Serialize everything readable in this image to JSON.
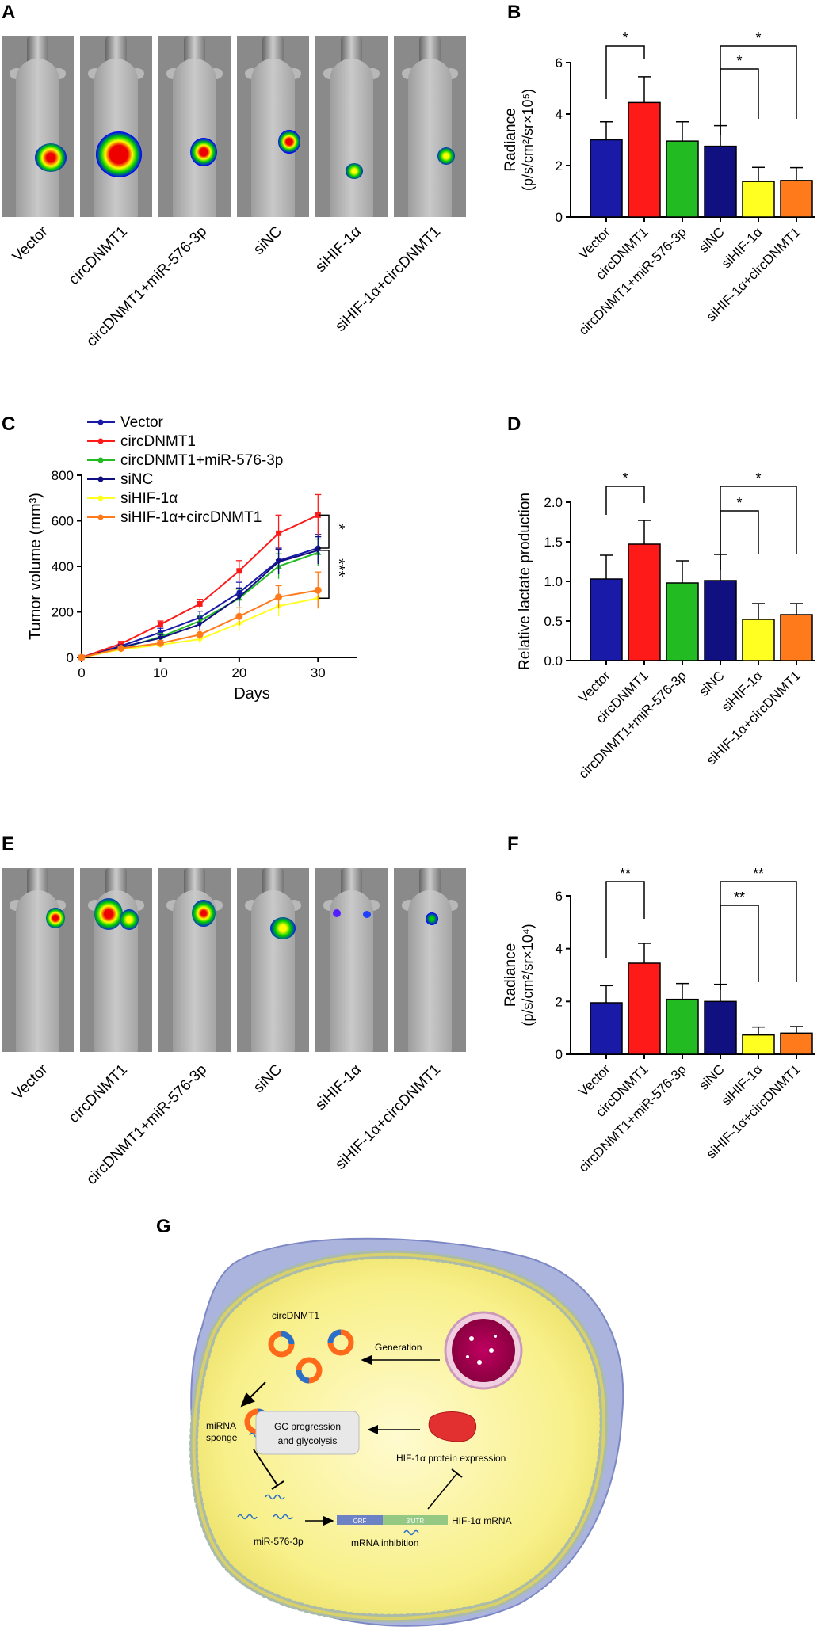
{
  "panel_labels": {
    "A": "A",
    "B": "B",
    "C": "C",
    "D": "D",
    "E": "E",
    "F": "F",
    "G": "G"
  },
  "groups": [
    "Vector",
    "circDNMT1",
    "circDNMT1+miR-576-3p",
    "siNC",
    "siHIF-1α",
    "siHIF-1α+circDNMT1"
  ],
  "colors": {
    "Vector": "#1a1aa8",
    "circDNMT1": "#ff1a1a",
    "circDNMT1+miR-576-3p": "#22bb22",
    "siNC": "#101080",
    "siHIF-1α": "#ffff22",
    "siHIF-1α+circDNMT1": "#ff7a1a"
  },
  "chart_data": [
    {
      "id": "B",
      "type": "bar",
      "categories": [
        "Vector",
        "circDNMT1",
        "circDNMT1+miR-576-3p",
        "siNC",
        "siHIF-1α",
        "siHIF-1α+circDNMT1"
      ],
      "values": [
        3.0,
        4.45,
        2.95,
        2.75,
        1.38,
        1.42
      ],
      "errors": [
        0.7,
        1.0,
        0.75,
        0.8,
        0.55,
        0.5
      ],
      "ylim": [
        0,
        6
      ],
      "yticks": [
        "0",
        "2",
        "4",
        "6"
      ],
      "ylabel_line1": "Radiance",
      "ylabel_line2": "(p/s/cm²/sr×10⁵)",
      "significance": [
        {
          "from": 0,
          "to": 1,
          "label": "*"
        },
        {
          "from": 3,
          "to": 4,
          "label": "*"
        },
        {
          "from": 3,
          "to": 5,
          "label": "*"
        }
      ]
    },
    {
      "id": "C",
      "type": "line",
      "x": [
        0,
        5,
        10,
        15,
        20,
        25,
        30
      ],
      "series": [
        {
          "name": "Vector",
          "values": [
            0,
            50,
            110,
            175,
            285,
            425,
            480
          ],
          "errors": [
            0,
            10,
            18,
            28,
            45,
            55,
            60
          ]
        },
        {
          "name": "circDNMT1",
          "values": [
            0,
            60,
            145,
            235,
            380,
            545,
            625
          ],
          "errors": [
            0,
            10,
            15,
            20,
            45,
            80,
            90
          ]
        },
        {
          "name": "circDNMT1+miR-576-3p",
          "values": [
            0,
            40,
            90,
            160,
            260,
            400,
            460
          ],
          "errors": [
            0,
            10,
            15,
            25,
            40,
            55,
            60
          ]
        },
        {
          "name": "siNC",
          "values": [
            0,
            45,
            85,
            145,
            265,
            420,
            470
          ],
          "errors": [
            0,
            10,
            15,
            25,
            40,
            55,
            60
          ]
        },
        {
          "name": "siHIF-1α",
          "values": [
            0,
            35,
            55,
            80,
            150,
            225,
            260
          ],
          "errors": [
            0,
            8,
            12,
            18,
            35,
            45,
            45
          ]
        },
        {
          "name": "siHIF-1α+circDNMT1",
          "values": [
            0,
            40,
            62,
            100,
            180,
            265,
            295
          ],
          "errors": [
            0,
            8,
            12,
            20,
            38,
            50,
            80
          ]
        }
      ],
      "xlabel": "Days",
      "ylabel": "Tumor volume (mm³)",
      "xlim": [
        0,
        35
      ],
      "ylim": [
        0,
        800
      ],
      "xticks": [
        "0",
        "10",
        "20",
        "30"
      ],
      "yticks": [
        "0",
        "200",
        "400",
        "600",
        "800"
      ],
      "significance": [
        {
          "label": "*"
        },
        {
          "label": "***"
        }
      ]
    },
    {
      "id": "D",
      "type": "bar",
      "categories": [
        "Vector",
        "circDNMT1",
        "circDNMT1+miR-576-3p",
        "siNC",
        "siHIF-1α",
        "siHIF-1α+circDNMT1"
      ],
      "values": [
        1.03,
        1.47,
        0.98,
        1.01,
        0.52,
        0.58
      ],
      "errors": [
        0.3,
        0.3,
        0.28,
        0.33,
        0.2,
        0.14
      ],
      "ylim": [
        0,
        2.0
      ],
      "yticks": [
        "0.0",
        "0.5",
        "1.0",
        "1.5",
        "2.0"
      ],
      "ylabel_line1": "Relative lactate production",
      "ylabel_line2": "",
      "significance": [
        {
          "from": 0,
          "to": 1,
          "label": "*"
        },
        {
          "from": 3,
          "to": 4,
          "label": "*"
        },
        {
          "from": 3,
          "to": 5,
          "label": "*"
        }
      ]
    },
    {
      "id": "F",
      "type": "bar",
      "categories": [
        "Vector",
        "circDNMT1",
        "circDNMT1+miR-576-3p",
        "siNC",
        "siHIF-1α",
        "siHIF-1α+circDNMT1"
      ],
      "values": [
        1.95,
        3.45,
        2.08,
        2.0,
        0.73,
        0.8
      ],
      "errors": [
        0.65,
        0.75,
        0.6,
        0.65,
        0.3,
        0.25
      ],
      "ylim": [
        0,
        6
      ],
      "yticks": [
        "0",
        "2",
        "4",
        "6"
      ],
      "ylabel_line1": "Radiance",
      "ylabel_line2": "(p/s/cm²/sr×10⁴)",
      "significance": [
        {
          "from": 0,
          "to": 1,
          "label": "**"
        },
        {
          "from": 3,
          "to": 4,
          "label": "**"
        },
        {
          "from": 3,
          "to": 5,
          "label": "**"
        }
      ]
    }
  ],
  "diagram": {
    "circ_label": "circDNMT1",
    "generation": "Generation",
    "mirna_sponge_1": "miRNA",
    "mirna_sponge_2": "sponge",
    "gc_1": "GC progression",
    "gc_2": "and glycolysis",
    "hif_protein": "HIF-1α protein expression",
    "mir": "miR-576-3p",
    "orf": "ORF",
    "utr": "3'UTR",
    "hif_mrna": "HIF-1α mRNA",
    "mrna_inhibition": "mRNA inhibition"
  }
}
